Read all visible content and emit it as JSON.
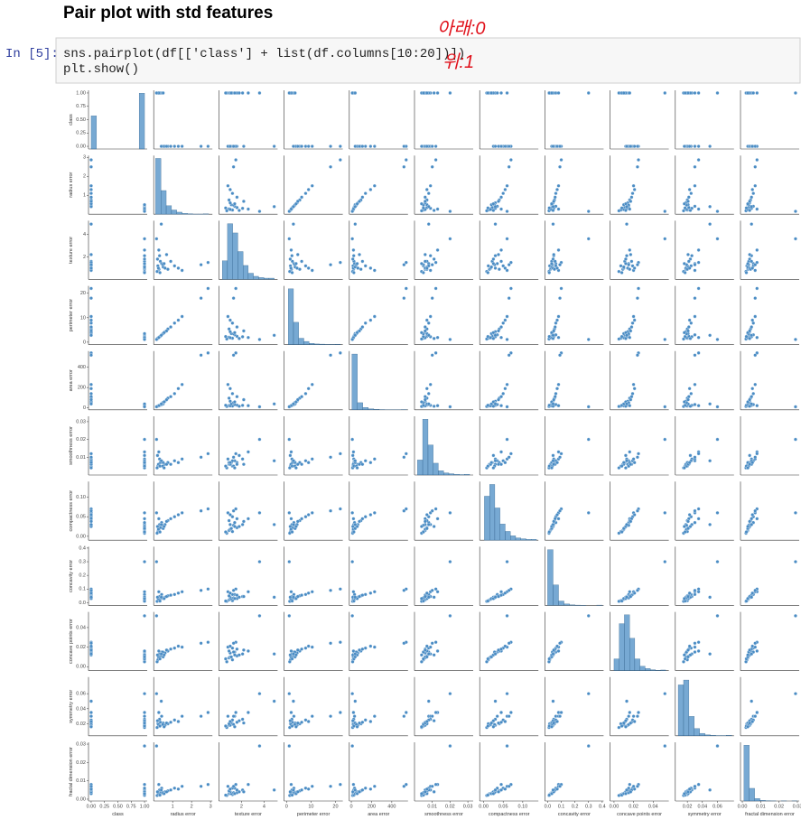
{
  "notebook": {
    "title": "Pair plot with std features",
    "prompt": "In [5]:",
    "code_lines": [
      "sns.pairplot(df[['class'] + list(df.columns[10:20])])",
      "plt.show()"
    ],
    "annotations": [
      "아래:0",
      "위:1"
    ]
  },
  "chart_data": {
    "type": "pairplot",
    "color": "#4a8cc4",
    "variables": [
      {
        "name": "class",
        "lim": [
          -0.05,
          1.05
        ],
        "ticks": [
          {
            "value": 0,
            "label": "0.00"
          },
          0.25,
          {
            "value": 0.5,
            "label": "0.50"
          },
          0.75,
          {
            "value": 1,
            "label": "1.00"
          }
        ]
      },
      {
        "name": "radius error",
        "lim": [
          0,
          3.1
        ],
        "ticks": [
          1,
          2,
          3
        ]
      },
      {
        "name": "texture error",
        "lim": [
          0,
          5.2
        ],
        "ticks": [
          2,
          4
        ]
      },
      {
        "name": "perimeter error",
        "lim": [
          -1,
          23
        ],
        "ticks": [
          0,
          10,
          20
        ]
      },
      {
        "name": "area error",
        "lim": [
          -20,
          560
        ],
        "ticks": [
          0,
          200,
          400
        ]
      },
      {
        "name": "smoothness error",
        "lim": [
          0,
          0.033
        ],
        "ticks": [
          0.01,
          0.02,
          0.03
        ]
      },
      {
        "name": "compactness error",
        "lim": [
          -0.01,
          0.14
        ],
        "ticks": [
          {
            "value": 0,
            "label": "0.00"
          },
          0.05,
          {
            "value": 0.1,
            "label": "0.10"
          }
        ]
      },
      {
        "name": "concavity error",
        "lim": [
          -0.02,
          0.41
        ],
        "ticks": [
          {
            "value": 0,
            "label": "0.0"
          },
          0.1,
          0.2,
          0.3,
          0.4
        ]
      },
      {
        "name": "concave points error",
        "lim": [
          -0.004,
          0.056
        ],
        "ticks": [
          {
            "value": 0,
            "label": "0.00"
          },
          0.02,
          0.04
        ]
      },
      {
        "name": "symmetry error",
        "lim": [
          0.004,
          0.082
        ],
        "ticks": [
          0.02,
          0.04,
          0.06
        ]
      },
      {
        "name": "fractal dimension error",
        "lim": [
          -0.001,
          0.031
        ],
        "ticks": [
          {
            "value": 0,
            "label": "0.00"
          },
          0.01,
          0.02,
          0.03
        ]
      }
    ],
    "rows": [
      [
        1,
        0.28,
        0.9,
        2.0,
        22,
        0.006,
        0.015,
        0.02,
        0.009,
        0.018,
        0.003
      ],
      [
        1,
        0.22,
        1.2,
        1.6,
        17,
        0.005,
        0.012,
        0.015,
        0.007,
        0.02,
        0.0025
      ],
      [
        1,
        0.35,
        1.6,
        2.4,
        26,
        0.007,
        0.022,
        0.03,
        0.011,
        0.022,
        0.0035
      ],
      [
        1,
        0.18,
        0.7,
        1.3,
        13,
        0.004,
        0.008,
        0.01,
        0.005,
        0.015,
        0.002
      ],
      [
        1,
        0.31,
        2.1,
        2.2,
        24,
        0.009,
        0.03,
        0.045,
        0.013,
        0.026,
        0.005
      ],
      [
        1,
        0.25,
        1.0,
        1.8,
        19,
        0.006,
        0.018,
        0.025,
        0.01,
        0.019,
        0.003
      ],
      [
        1,
        0.42,
        1.4,
        3.0,
        32,
        0.008,
        0.035,
        0.06,
        0.015,
        0.03,
        0.006
      ],
      [
        1,
        0.2,
        1.8,
        1.5,
        15,
        0.011,
        0.025,
        0.04,
        0.012,
        0.024,
        0.004
      ],
      [
        1,
        0.33,
        0.6,
        2.3,
        25,
        0.005,
        0.011,
        0.012,
        0.008,
        0.017,
        0.0022
      ],
      [
        1,
        0.27,
        2.6,
        1.9,
        21,
        0.013,
        0.045,
        0.08,
        0.016,
        0.035,
        0.008
      ],
      [
        1,
        0.5,
        1.1,
        3.5,
        38,
        0.007,
        0.02,
        0.03,
        0.01,
        0.021,
        0.003
      ],
      [
        1,
        0.15,
        3.6,
        1.1,
        10,
        0.02,
        0.06,
        0.3,
        0.052,
        0.06,
        0.029
      ],
      [
        0,
        0.6,
        1.0,
        4.3,
        65,
        0.006,
        0.03,
        0.04,
        0.014,
        0.018,
        0.004
      ],
      [
        0,
        0.75,
        0.9,
        5.4,
        95,
        0.007,
        0.04,
        0.05,
        0.016,
        0.02,
        0.0045
      ],
      [
        0,
        0.48,
        1.3,
        3.4,
        50,
        0.005,
        0.028,
        0.035,
        0.015,
        0.019,
        0.0035
      ],
      [
        0,
        1.1,
        1.2,
        7.8,
        140,
        0.008,
        0.05,
        0.06,
        0.019,
        0.025,
        0.006
      ],
      [
        0,
        0.9,
        1.6,
        6.2,
        110,
        0.006,
        0.045,
        0.055,
        0.018,
        0.022,
        0.005
      ],
      [
        0,
        1.5,
        0.8,
        10.5,
        230,
        0.009,
        0.06,
        0.08,
        0.02,
        0.03,
        0.007
      ],
      [
        0,
        0.55,
        1.4,
        3.9,
        58,
        0.004,
        0.025,
        0.03,
        0.012,
        0.016,
        0.003
      ],
      [
        0,
        2.87,
        1.5,
        21.98,
        542,
        0.012,
        0.07,
        0.1,
        0.025,
        0.035,
        0.008
      ],
      [
        0,
        0.68,
        2.2,
        4.6,
        80,
        0.006,
        0.038,
        0.045,
        0.017,
        0.021,
        0.004
      ],
      [
        0,
        2.5,
        1.3,
        18.0,
        520,
        0.01,
        0.065,
        0.09,
        0.024,
        0.03,
        0.007
      ],
      [
        0,
        0.4,
        4.9,
        2.8,
        38,
        0.008,
        0.03,
        0.04,
        0.013,
        0.05,
        0.005
      ],
      [
        0,
        1.3,
        1.0,
        9.0,
        190,
        0.007,
        0.055,
        0.07,
        0.021,
        0.023,
        0.0055
      ]
    ],
    "histograms": [
      {
        "bins": [
          0,
          0.1,
          0.2,
          0.3,
          0.4,
          0.5,
          0.6,
          0.7,
          0.8,
          0.9,
          1.0
        ],
        "counts": [
          212,
          0,
          0,
          0,
          0,
          0,
          0,
          0,
          0,
          357
        ]
      },
      {
        "bins": [
          0.1,
          0.38,
          0.66,
          0.94,
          1.22,
          1.5,
          1.78,
          2.06,
          2.34,
          2.62,
          2.9
        ],
        "counts": [
          330,
          140,
          50,
          25,
          12,
          5,
          3,
          1,
          1,
          2
        ]
      },
      {
        "bins": [
          0.3,
          0.76,
          1.22,
          1.68,
          2.14,
          2.6,
          3.06,
          3.52,
          3.98,
          4.44,
          4.9
        ],
        "counts": [
          60,
          180,
          150,
          90,
          45,
          20,
          10,
          6,
          4,
          4
        ]
      },
      {
        "bins": [
          0.7,
          2.83,
          4.96,
          7.09,
          9.22,
          11.35,
          13.48,
          15.61,
          17.74,
          19.87,
          22
        ],
        "counts": [
          350,
          140,
          40,
          20,
          8,
          4,
          3,
          1,
          1,
          2
        ]
      },
      {
        "bins": [
          6,
          60,
          114,
          168,
          222,
          276,
          330,
          384,
          438,
          492,
          546
        ],
        "counts": [
          470,
          60,
          20,
          8,
          4,
          2,
          1,
          1,
          1,
          2
        ]
      },
      {
        "bins": [
          0.0017,
          0.0046,
          0.0076,
          0.0105,
          0.0134,
          0.0164,
          0.0193,
          0.0222,
          0.0252,
          0.0281,
          0.031
        ],
        "counts": [
          70,
          260,
          140,
          55,
          20,
          10,
          6,
          3,
          2,
          3
        ]
      },
      {
        "bins": [
          0.002,
          0.0153,
          0.0286,
          0.0419,
          0.0552,
          0.0685,
          0.0818,
          0.0951,
          0.1084,
          0.1217,
          0.135
        ],
        "counts": [
          150,
          190,
          110,
          55,
          30,
          15,
          8,
          5,
          3,
          3
        ]
      },
      {
        "bins": [
          0,
          0.04,
          0.08,
          0.12,
          0.16,
          0.2,
          0.24,
          0.28,
          0.32,
          0.36,
          0.4
        ],
        "counts": [
          380,
          140,
          30,
          10,
          4,
          2,
          1,
          0,
          0,
          2
        ]
      },
      {
        "bins": [
          0,
          0.0053,
          0.0106,
          0.0159,
          0.0212,
          0.0265,
          0.0318,
          0.0371,
          0.0424,
          0.0477,
          0.053
        ],
        "counts": [
          40,
          160,
          190,
          110,
          40,
          15,
          7,
          3,
          1,
          2
        ]
      },
      {
        "bins": [
          0.0079,
          0.015,
          0.0221,
          0.0292,
          0.0363,
          0.0434,
          0.0505,
          0.0576,
          0.0647,
          0.0718,
          0.079
        ],
        "counts": [
          210,
          230,
          80,
          30,
          10,
          4,
          2,
          1,
          1,
          2
        ]
      },
      {
        "bins": [
          0.0009,
          0.0038,
          0.0067,
          0.0096,
          0.0125,
          0.0154,
          0.0183,
          0.0212,
          0.0241,
          0.027,
          0.0299
        ],
        "counts": [
          440,
          100,
          20,
          5,
          2,
          1,
          0,
          1,
          0,
          1
        ]
      }
    ]
  }
}
